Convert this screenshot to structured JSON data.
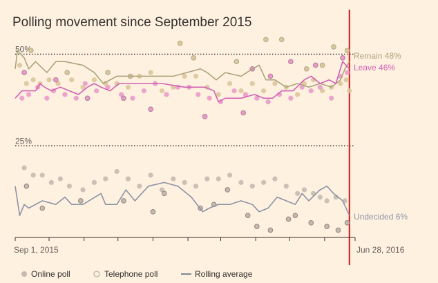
{
  "chart_data": {
    "type": "scatter",
    "title": "Polling movement since September 2015",
    "x_start_label": "Sep 1, 2015",
    "x_end_label": "Jun 28, 2016",
    "xlim": [
      0,
      301
    ],
    "ylim": [
      0,
      55
    ],
    "reference_lines": [
      {
        "label": "50%",
        "value": 50
      },
      {
        "label": "25%",
        "value": 25
      }
    ],
    "event_marker_day": 296,
    "colors": {
      "background": "#fff1e0",
      "remain": "#a9a57a",
      "leave": "#d160b4",
      "undecided": "#8a93a6",
      "remain_dot": "#dcc79c",
      "leave_dot": "#e99bc9",
      "undecided_dot": "#c5bab0",
      "event_line": "#cc2529",
      "axis": "#33302e"
    },
    "series": [
      {
        "name": "Remain",
        "label": "Remain 48%",
        "final": 48,
        "rolling": [
          [
            0,
            46
          ],
          [
            2,
            51
          ],
          [
            8,
            49
          ],
          [
            12,
            46
          ],
          [
            18,
            48
          ],
          [
            28,
            45
          ],
          [
            36,
            48
          ],
          [
            44,
            48
          ],
          [
            60,
            47
          ],
          [
            70,
            45
          ],
          [
            78,
            42
          ],
          [
            90,
            44
          ],
          [
            100,
            44
          ],
          [
            120,
            44
          ],
          [
            140,
            44
          ],
          [
            164,
            46
          ],
          [
            170,
            45
          ],
          [
            178,
            43
          ],
          [
            186,
            45
          ],
          [
            200,
            44
          ],
          [
            210,
            46
          ],
          [
            216,
            47
          ],
          [
            222,
            43
          ],
          [
            230,
            43
          ],
          [
            240,
            41
          ],
          [
            250,
            42
          ],
          [
            260,
            41
          ],
          [
            270,
            42
          ],
          [
            280,
            41
          ],
          [
            288,
            43
          ],
          [
            292,
            46
          ],
          [
            296,
            48
          ]
        ],
        "online": [
          [
            4,
            47
          ],
          [
            10,
            42
          ],
          [
            16,
            43
          ],
          [
            22,
            42
          ],
          [
            30,
            43
          ],
          [
            38,
            42
          ],
          [
            50,
            43
          ],
          [
            60,
            41
          ],
          [
            70,
            43
          ],
          [
            80,
            42
          ],
          [
            90,
            42
          ],
          [
            100,
            41
          ],
          [
            110,
            44
          ],
          [
            120,
            45
          ],
          [
            130,
            40
          ],
          [
            140,
            41
          ],
          [
            150,
            44
          ],
          [
            160,
            44
          ],
          [
            170,
            41
          ],
          [
            180,
            39
          ],
          [
            190,
            42
          ],
          [
            200,
            40
          ],
          [
            210,
            42
          ],
          [
            220,
            40
          ],
          [
            230,
            42
          ],
          [
            240,
            41
          ],
          [
            250,
            39
          ],
          [
            256,
            42
          ],
          [
            264,
            43
          ],
          [
            272,
            40
          ],
          [
            280,
            41
          ],
          [
            288,
            42
          ],
          [
            293,
            43
          ],
          [
            296,
            40
          ]
        ],
        "telephone": [
          [
            14,
            51
          ],
          [
            46,
            45
          ],
          [
            82,
            45
          ],
          [
            102,
            44
          ],
          [
            146,
            53
          ],
          [
            158,
            49
          ],
          [
            196,
            48
          ],
          [
            222,
            54
          ],
          [
            236,
            54
          ],
          [
            258,
            46
          ],
          [
            272,
            47
          ],
          [
            282,
            52
          ],
          [
            294,
            51
          ]
        ]
      },
      {
        "name": "Leave",
        "label": "Leave 46%",
        "final": 46,
        "rolling": [
          [
            0,
            38
          ],
          [
            6,
            40
          ],
          [
            18,
            40
          ],
          [
            22,
            42
          ],
          [
            26,
            41
          ],
          [
            32,
            40
          ],
          [
            40,
            41
          ],
          [
            48,
            40
          ],
          [
            56,
            39
          ],
          [
            64,
            41
          ],
          [
            70,
            42
          ],
          [
            76,
            41
          ],
          [
            84,
            40
          ],
          [
            92,
            42
          ],
          [
            110,
            42
          ],
          [
            130,
            42
          ],
          [
            150,
            41
          ],
          [
            168,
            41
          ],
          [
            176,
            40
          ],
          [
            180,
            37
          ],
          [
            186,
            38
          ],
          [
            200,
            38
          ],
          [
            212,
            39
          ],
          [
            220,
            38
          ],
          [
            228,
            38
          ],
          [
            236,
            40
          ],
          [
            246,
            40
          ],
          [
            256,
            43
          ],
          [
            262,
            44
          ],
          [
            270,
            42
          ],
          [
            278,
            43
          ],
          [
            284,
            42
          ],
          [
            290,
            48
          ],
          [
            296,
            46
          ]
        ],
        "online": [
          [
            6,
            38
          ],
          [
            12,
            39
          ],
          [
            20,
            41
          ],
          [
            28,
            38
          ],
          [
            34,
            40
          ],
          [
            44,
            39
          ],
          [
            54,
            38
          ],
          [
            62,
            42
          ],
          [
            72,
            40
          ],
          [
            82,
            41
          ],
          [
            94,
            39
          ],
          [
            104,
            38
          ],
          [
            114,
            40
          ],
          [
            124,
            42
          ],
          [
            134,
            39
          ],
          [
            144,
            41
          ],
          [
            154,
            41
          ],
          [
            162,
            39
          ],
          [
            172,
            38
          ],
          [
            182,
            37
          ],
          [
            194,
            40
          ],
          [
            204,
            39
          ],
          [
            214,
            38
          ],
          [
            224,
            37
          ],
          [
            234,
            39
          ],
          [
            244,
            38
          ],
          [
            254,
            41
          ],
          [
            262,
            40
          ],
          [
            270,
            41
          ],
          [
            280,
            38
          ],
          [
            288,
            44
          ],
          [
            294,
            45
          ]
        ],
        "telephone": [
          [
            8,
            45
          ],
          [
            36,
            43
          ],
          [
            64,
            38
          ],
          [
            96,
            38
          ],
          [
            120,
            35
          ],
          [
            168,
            33
          ],
          [
            202,
            34
          ],
          [
            210,
            46
          ],
          [
            226,
            44
          ],
          [
            244,
            48
          ],
          [
            266,
            47
          ],
          [
            290,
            49
          ]
        ]
      },
      {
        "name": "Undecided",
        "label": "Undecided 6%",
        "final": 6,
        "rolling": [
          [
            0,
            14
          ],
          [
            4,
            6
          ],
          [
            8,
            9
          ],
          [
            12,
            8
          ],
          [
            24,
            10
          ],
          [
            36,
            9
          ],
          [
            44,
            11
          ],
          [
            50,
            9
          ],
          [
            60,
            9
          ],
          [
            76,
            12
          ],
          [
            80,
            9
          ],
          [
            90,
            9
          ],
          [
            98,
            13
          ],
          [
            106,
            10
          ],
          [
            112,
            12
          ],
          [
            118,
            14
          ],
          [
            132,
            15
          ],
          [
            144,
            14
          ],
          [
            156,
            11
          ],
          [
            166,
            7
          ],
          [
            172,
            8
          ],
          [
            180,
            9
          ],
          [
            190,
            9
          ],
          [
            200,
            10
          ],
          [
            210,
            9
          ],
          [
            216,
            7
          ],
          [
            224,
            8
          ],
          [
            232,
            11
          ],
          [
            240,
            10
          ],
          [
            248,
            9
          ],
          [
            254,
            12
          ],
          [
            260,
            10
          ],
          [
            270,
            13
          ],
          [
            276,
            14
          ],
          [
            282,
            12
          ],
          [
            290,
            10
          ],
          [
            296,
            6
          ]
        ],
        "online": [
          [
            8,
            19
          ],
          [
            16,
            17
          ],
          [
            24,
            17
          ],
          [
            32,
            15
          ],
          [
            40,
            16
          ],
          [
            48,
            14
          ],
          [
            60,
            13
          ],
          [
            70,
            15
          ],
          [
            80,
            16
          ],
          [
            90,
            18
          ],
          [
            100,
            16
          ],
          [
            110,
            14
          ],
          [
            120,
            17
          ],
          [
            130,
            13
          ],
          [
            140,
            16
          ],
          [
            150,
            15
          ],
          [
            160,
            14
          ],
          [
            170,
            16
          ],
          [
            180,
            16
          ],
          [
            190,
            17
          ],
          [
            200,
            15
          ],
          [
            210,
            14
          ],
          [
            220,
            15
          ],
          [
            230,
            16
          ],
          [
            240,
            14
          ],
          [
            250,
            12
          ],
          [
            256,
            13
          ],
          [
            264,
            12
          ],
          [
            270,
            11
          ],
          [
            276,
            10
          ],
          [
            284,
            11
          ],
          [
            292,
            10
          ]
        ],
        "telephone": [
          [
            10,
            14
          ],
          [
            24,
            8
          ],
          [
            58,
            10
          ],
          [
            96,
            10
          ],
          [
            122,
            7
          ],
          [
            132,
            12
          ],
          [
            164,
            8
          ],
          [
            176,
            9
          ],
          [
            188,
            13
          ],
          [
            206,
            6
          ],
          [
            214,
            3
          ],
          [
            226,
            2
          ],
          [
            242,
            5
          ],
          [
            248,
            6
          ],
          [
            262,
            4
          ],
          [
            276,
            3
          ],
          [
            286,
            2
          ],
          [
            294,
            4
          ]
        ]
      }
    ]
  },
  "legend": {
    "online_label": "Online poll",
    "telephone_label": "Telephone poll",
    "rolling_label": "Rolling average"
  }
}
